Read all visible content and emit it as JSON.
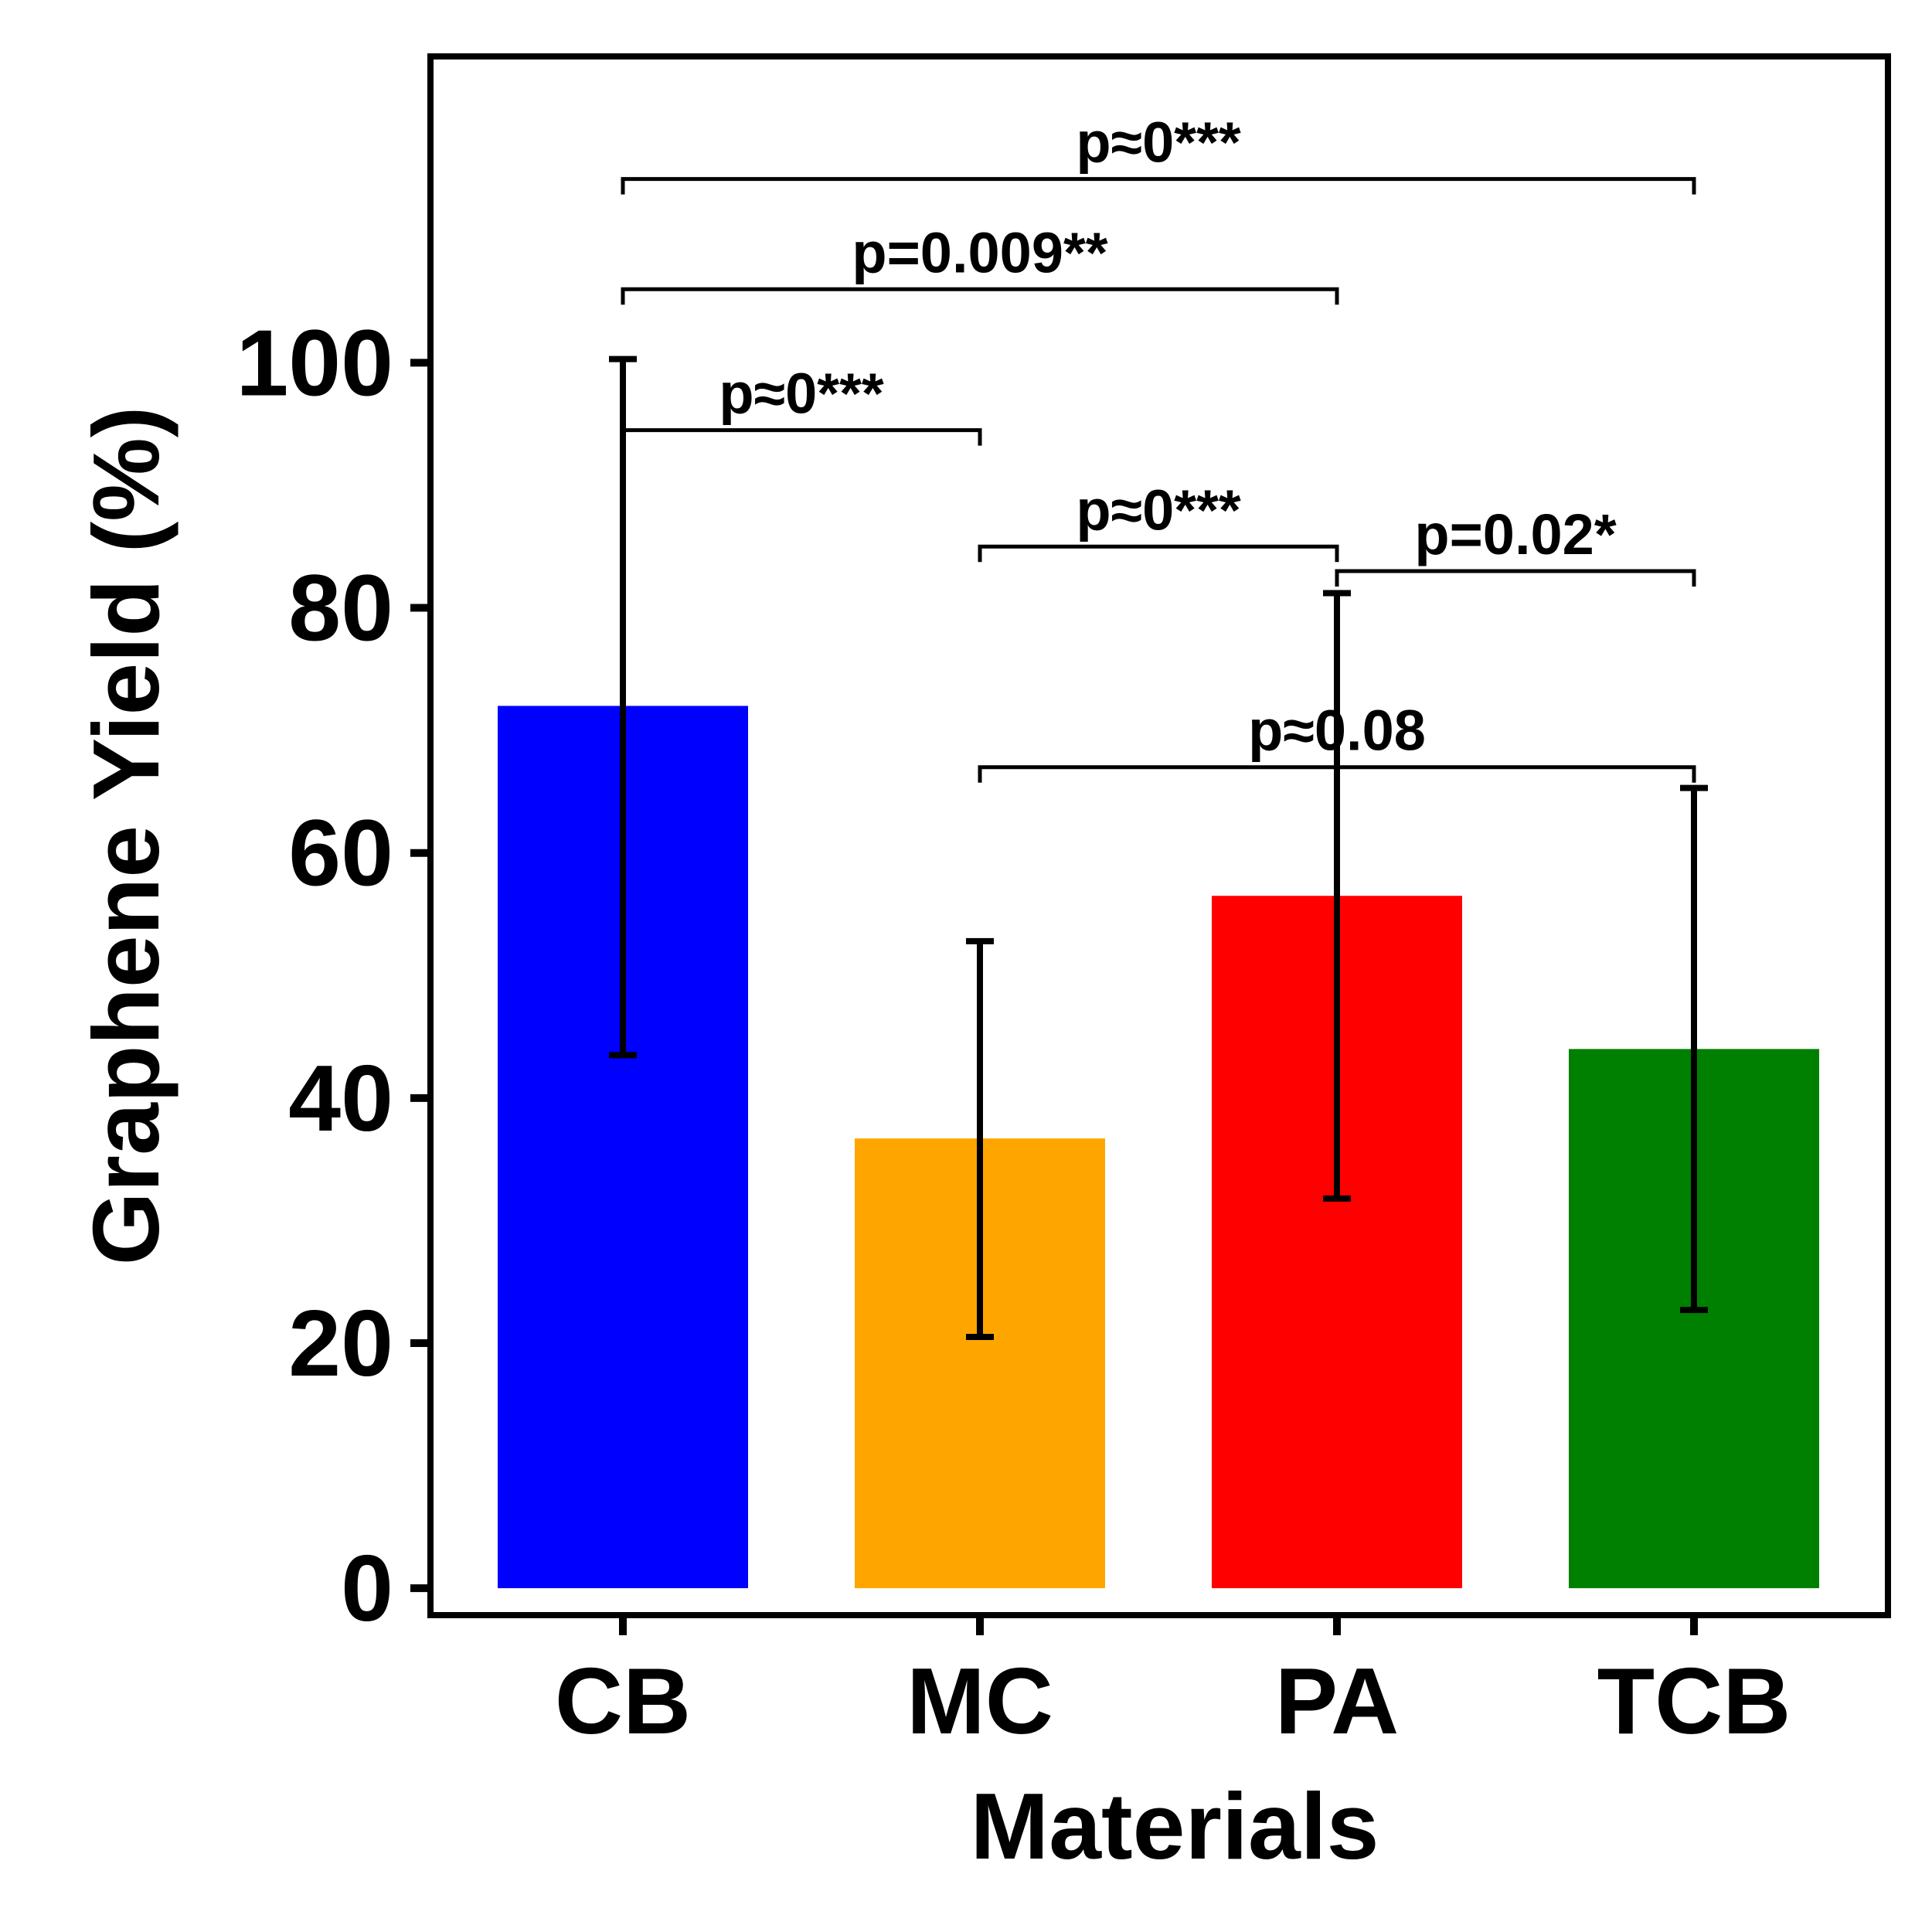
{
  "chart_data": {
    "type": "bar",
    "categories": [
      "CB",
      "MC",
      "PA",
      "TCB"
    ],
    "values": [
      72,
      36.7,
      56.5,
      44
    ],
    "error_low": [
      43.5,
      20.5,
      31.8,
      22.7
    ],
    "error_high": [
      100.3,
      52.8,
      81.2,
      65.3
    ],
    "colors": [
      "#0000ff",
      "#ffa500",
      "#ff0000",
      "#008000"
    ],
    "xlabel": "Materials",
    "ylabel": "Graphene Yield (%)",
    "ylim": [
      -2.2,
      125
    ],
    "yticks": [
      0,
      20,
      40,
      60,
      80,
      100
    ],
    "grid": false,
    "significance": [
      {
        "from": 0,
        "to": 1,
        "y": 94.5,
        "label": "p≈0***",
        "left_tick": false
      },
      {
        "from": 1,
        "to": 2,
        "y": 85,
        "label": "p≈0***",
        "left_tick": true
      },
      {
        "from": 2,
        "to": 3,
        "y": 83,
        "label": "p=0.02*",
        "left_tick": true
      },
      {
        "from": 1,
        "to": 3,
        "y": 67,
        "label": "p≈0.08",
        "left_tick": true
      },
      {
        "from": 0,
        "to": 2,
        "y": 106,
        "label": "p=0.009**",
        "left_tick": true
      },
      {
        "from": 0,
        "to": 3,
        "y": 115,
        "label": "p≈0***",
        "left_tick": true
      }
    ]
  }
}
